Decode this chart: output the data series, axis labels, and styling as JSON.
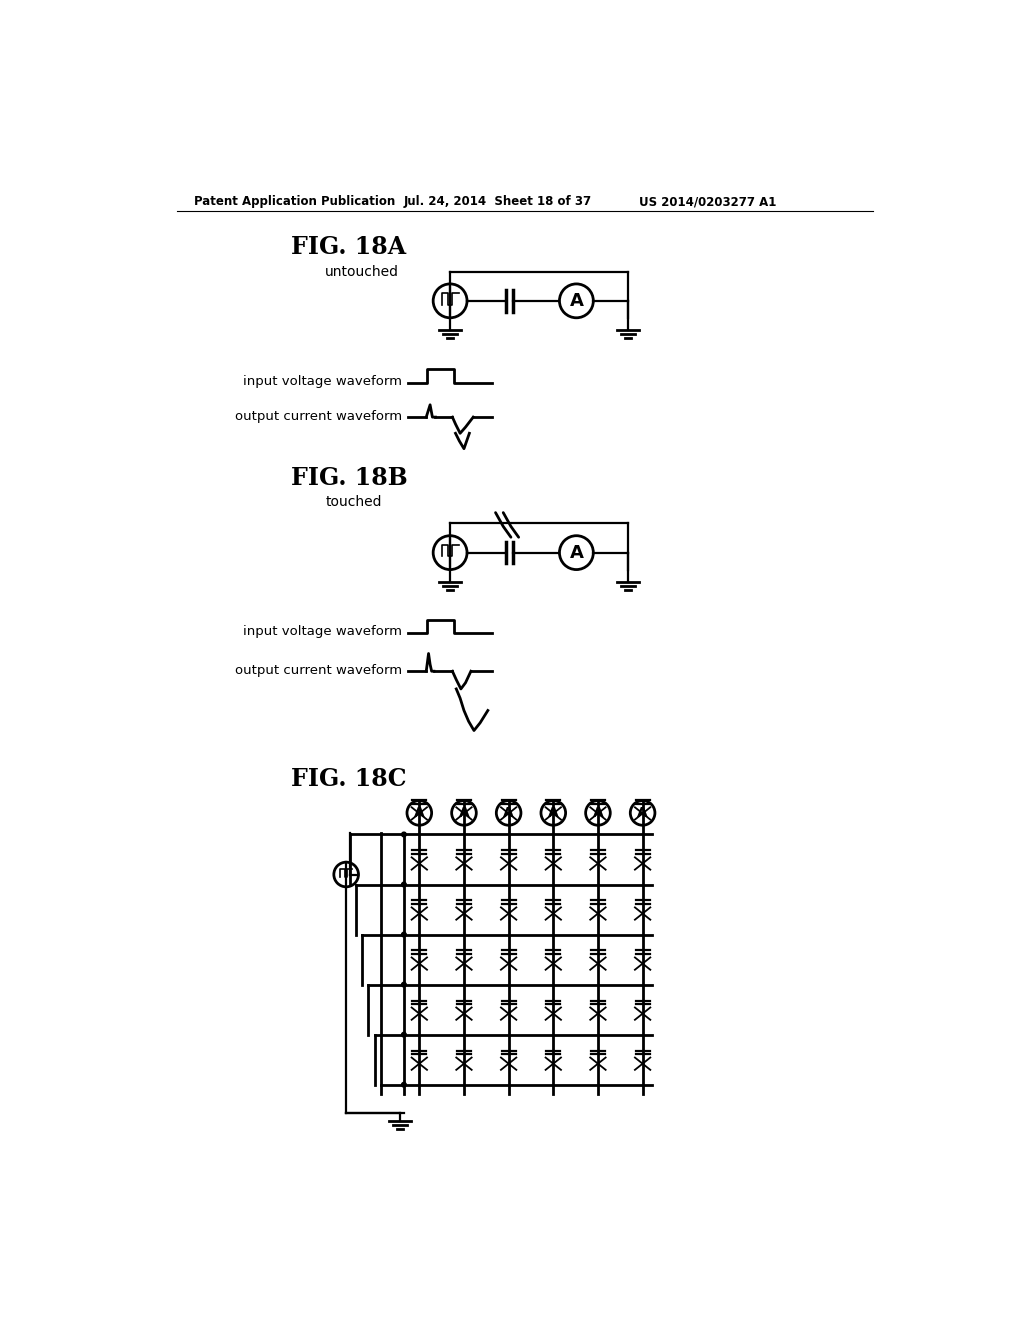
{
  "bg_color": "#ffffff",
  "text_color": "#000000",
  "header_left": "Patent Application Publication",
  "header_mid": "Jul. 24, 2014  Sheet 18 of 37",
  "header_right": "US 2014/0203277 A1",
  "fig18a_label": "FIG. 18A",
  "fig18a_sublabel": "untouched",
  "fig18b_label": "FIG. 18B",
  "fig18b_sublabel": "touched",
  "fig18c_label": "FIG. 18C",
  "input_voltage_waveform": "input voltage waveform",
  "output_current_waveform": "output current waveform"
}
